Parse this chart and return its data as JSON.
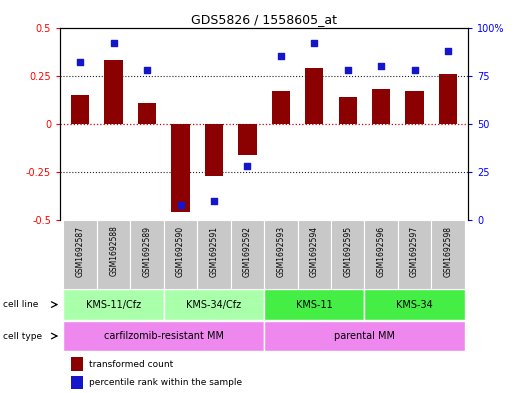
{
  "title": "GDS5826 / 1558605_at",
  "samples": [
    "GSM1692587",
    "GSM1692588",
    "GSM1692589",
    "GSM1692590",
    "GSM1692591",
    "GSM1692592",
    "GSM1692593",
    "GSM1692594",
    "GSM1692595",
    "GSM1692596",
    "GSM1692597",
    "GSM1692598"
  ],
  "transformed_count": [
    0.15,
    0.33,
    0.11,
    -0.46,
    -0.27,
    -0.16,
    0.17,
    0.29,
    0.14,
    0.18,
    0.17,
    0.26
  ],
  "percentile_rank": [
    82,
    92,
    78,
    8,
    10,
    28,
    85,
    92,
    78,
    80,
    78,
    88
  ],
  "ylim_left": [
    -0.5,
    0.5
  ],
  "ylim_right": [
    0,
    100
  ],
  "yticks_left": [
    -0.5,
    -0.25,
    0.0,
    0.25,
    0.5
  ],
  "yticks_right": [
    0,
    25,
    50,
    75,
    100
  ],
  "bar_color": "#8B0000",
  "dot_color": "#1515CC",
  "hline_color": "#CC0000",
  "dotted_color": "#222222",
  "cell_line_groups": [
    {
      "label": "KMS-11/Cfz",
      "start": 0,
      "end": 2,
      "color": "#AAFFAA"
    },
    {
      "label": "KMS-34/Cfz",
      "start": 3,
      "end": 5,
      "color": "#AAFFAA"
    },
    {
      "label": "KMS-11",
      "start": 6,
      "end": 8,
      "color": "#44EE44"
    },
    {
      "label": "KMS-34",
      "start": 9,
      "end": 11,
      "color": "#44EE44"
    }
  ],
  "cell_type_groups": [
    {
      "label": "carfilzomib-resistant MM",
      "start": 0,
      "end": 5,
      "color": "#EE88EE"
    },
    {
      "label": "parental MM",
      "start": 6,
      "end": 11,
      "color": "#EE88EE"
    }
  ],
  "legend_items": [
    {
      "label": "transformed count",
      "color": "#8B0000"
    },
    {
      "label": "percentile rank within the sample",
      "color": "#1515CC"
    }
  ],
  "sample_box_color": "#C8C8C8",
  "title_fontsize": 9,
  "axis_fontsize": 7,
  "tick_fontsize": 7,
  "sample_fontsize": 5.5,
  "group_fontsize": 7,
  "legend_fontsize": 6.5
}
